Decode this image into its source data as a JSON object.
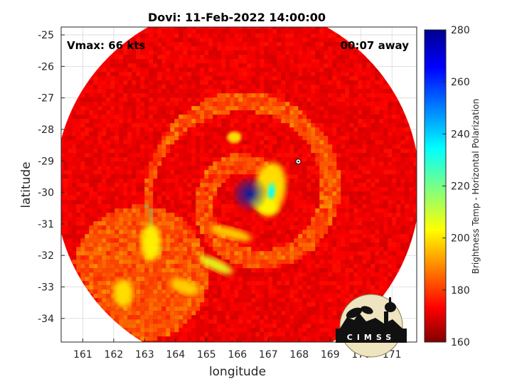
{
  "chart_data": {
    "type": "heatmap",
    "title": "Dovi: 11-Feb-2022 14:00:00",
    "annotations": {
      "vmax": "Vmax: 66 kts",
      "time_offset": "00:07 away"
    },
    "xlabel": "longitude",
    "ylabel": "latitude",
    "xlim": [
      160.3,
      171.8
    ],
    "ylim": [
      -34.75,
      -24.75
    ],
    "xticks": [
      161,
      162,
      163,
      164,
      165,
      166,
      167,
      168,
      169,
      170,
      171
    ],
    "yticks": [
      -25,
      -26,
      -27,
      -28,
      -29,
      -30,
      -31,
      -32,
      -33,
      -34
    ],
    "grid": true,
    "colorbar": {
      "label": "Brightness Temp - Horizontal Polarization",
      "range": [
        160,
        280
      ],
      "ticks": [
        280,
        260,
        240,
        220,
        200,
        180,
        160
      ],
      "colormap": "jet"
    },
    "swath": {
      "center": [
        166.0,
        -29.8
      ],
      "radius_deg": 5.9
    },
    "storm": {
      "eye_center": [
        166.4,
        -30.05
      ],
      "eyewall_min_temp": 205,
      "marker": [
        167.97,
        -29.02
      ]
    },
    "logo": "CIMSS"
  },
  "colors": {
    "background": "#ffffff",
    "grid": "#d9d9d9",
    "axes": "#262626"
  }
}
